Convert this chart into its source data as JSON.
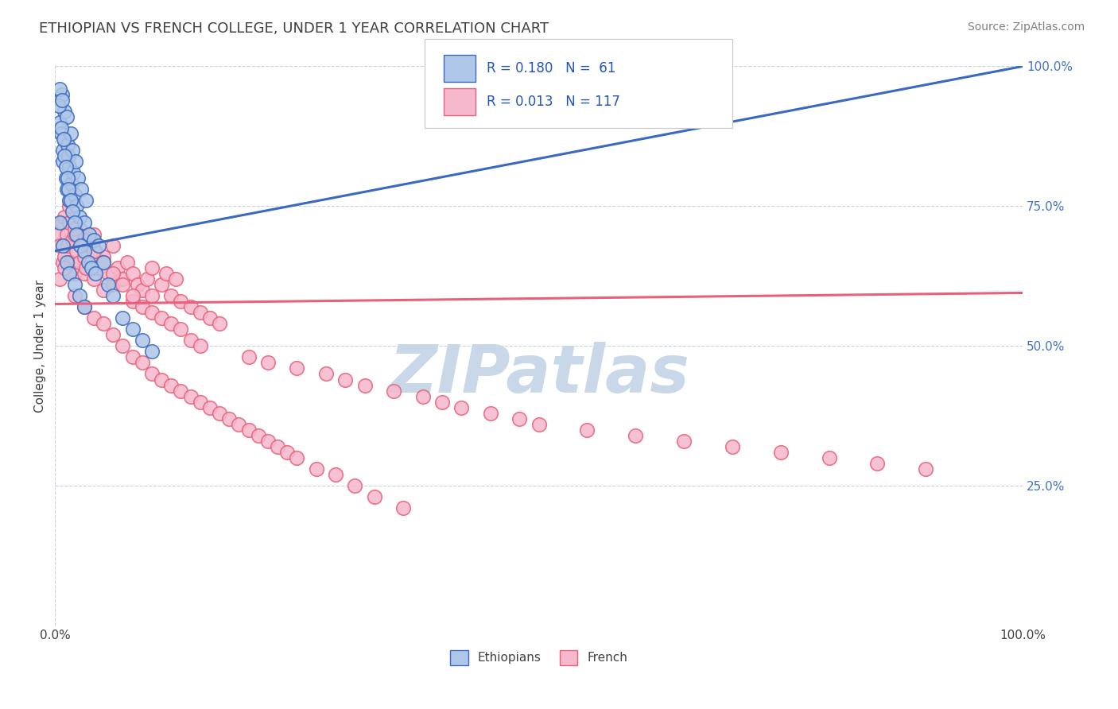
{
  "title": "ETHIOPIAN VS FRENCH COLLEGE, UNDER 1 YEAR CORRELATION CHART",
  "source_text": "Source: ZipAtlas.com",
  "ylabel": "College, Under 1 year",
  "xlim": [
    0.0,
    100.0
  ],
  "ylim": [
    0.0,
    100.0
  ],
  "r_ethiopian": 0.18,
  "n_ethiopian": 61,
  "r_french": 0.013,
  "n_french": 117,
  "blue_color": "#aec6e8",
  "pink_color": "#f5b8cc",
  "blue_line_color": "#3a6abf",
  "pink_line_color": "#e8607a",
  "title_color": "#404040",
  "legend_text_color": "#2255bb",
  "right_axis_color": "#4472c4",
  "watermark_color": "#c8d8e8",
  "grid_color": "#c8d0dc",
  "eth_trend_x0": 0.0,
  "eth_trend_y0": 67.0,
  "eth_trend_x1": 100.0,
  "eth_trend_y1": 100.0,
  "fr_trend_x0": 0.0,
  "fr_trend_y0": 57.5,
  "fr_trend_x1": 100.0,
  "fr_trend_y1": 59.5,
  "ethiopian_scatter_x": [
    0.5,
    0.6,
    0.7,
    0.8,
    0.8,
    1.0,
    1.0,
    1.1,
    1.2,
    1.2,
    1.3,
    1.4,
    1.5,
    1.5,
    1.6,
    1.7,
    1.8,
    1.9,
    2.0,
    2.1,
    2.2,
    2.4,
    2.5,
    2.7,
    3.0,
    3.2,
    3.5,
    4.0,
    4.5,
    5.0,
    0.4,
    0.5,
    0.6,
    0.7,
    0.9,
    1.0,
    1.1,
    1.3,
    1.4,
    1.6,
    1.8,
    2.0,
    2.2,
    2.6,
    3.0,
    3.4,
    3.8,
    4.2,
    5.5,
    6.0,
    0.5,
    0.8,
    1.2,
    1.5,
    2.0,
    2.5,
    3.0,
    7.0,
    8.0,
    9.0,
    10.0
  ],
  "ethiopian_scatter_y": [
    90,
    88,
    95,
    85,
    83,
    92,
    87,
    80,
    91,
    78,
    86,
    84,
    82,
    76,
    88,
    79,
    85,
    81,
    77,
    83,
    75,
    80,
    73,
    78,
    72,
    76,
    70,
    69,
    68,
    65,
    93,
    96,
    89,
    94,
    87,
    84,
    82,
    80,
    78,
    76,
    74,
    72,
    70,
    68,
    67,
    65,
    64,
    63,
    61,
    59,
    72,
    68,
    65,
    63,
    61,
    59,
    57,
    55,
    53,
    51,
    49
  ],
  "french_scatter_x": [
    0.3,
    0.5,
    0.7,
    0.8,
    1.0,
    1.0,
    1.2,
    1.3,
    1.5,
    1.6,
    1.8,
    2.0,
    2.0,
    2.2,
    2.5,
    2.5,
    2.8,
    3.0,
    3.0,
    3.2,
    3.5,
    3.8,
    4.0,
    4.0,
    4.2,
    4.5,
    5.0,
    5.0,
    5.5,
    6.0,
    6.0,
    6.5,
    7.0,
    7.5,
    8.0,
    8.0,
    8.5,
    9.0,
    9.5,
    10.0,
    10.0,
    11.0,
    11.5,
    12.0,
    12.5,
    13.0,
    14.0,
    15.0,
    16.0,
    17.0,
    1.5,
    2.0,
    3.0,
    4.0,
    5.0,
    6.0,
    7.0,
    8.0,
    9.0,
    10.0,
    11.0,
    12.0,
    13.0,
    14.0,
    15.0,
    20.0,
    22.0,
    25.0,
    28.0,
    30.0,
    32.0,
    35.0,
    38.0,
    40.0,
    42.0,
    45.0,
    48.0,
    50.0,
    55.0,
    60.0,
    65.0,
    70.0,
    75.0,
    80.0,
    85.0,
    90.0,
    0.5,
    1.0,
    2.0,
    3.0,
    4.0,
    5.0,
    6.0,
    7.0,
    8.0,
    9.0,
    10.0,
    11.0,
    12.0,
    13.0,
    14.0,
    15.0,
    16.0,
    17.0,
    18.0,
    19.0,
    20.0,
    21.0,
    22.0,
    23.0,
    24.0,
    25.0,
    27.0,
    29.0,
    31.0,
    33.0,
    36.0
  ],
  "french_scatter_y": [
    70,
    68,
    72,
    65,
    73,
    66,
    70,
    68,
    72,
    65,
    69,
    70,
    63,
    67,
    71,
    65,
    68,
    66,
    63,
    64,
    68,
    65,
    70,
    62,
    67,
    64,
    66,
    60,
    63,
    68,
    61,
    64,
    62,
    65,
    63,
    58,
    61,
    60,
    62,
    59,
    64,
    61,
    63,
    59,
    62,
    58,
    57,
    56,
    55,
    54,
    75,
    71,
    69,
    67,
    65,
    63,
    61,
    59,
    57,
    56,
    55,
    54,
    53,
    51,
    50,
    48,
    47,
    46,
    45,
    44,
    43,
    42,
    41,
    40,
    39,
    38,
    37,
    36,
    35,
    34,
    33,
    32,
    31,
    30,
    29,
    28,
    62,
    64,
    59,
    57,
    55,
    54,
    52,
    50,
    48,
    47,
    45,
    44,
    43,
    42,
    41,
    40,
    39,
    38,
    37,
    36,
    35,
    34,
    33,
    32,
    31,
    30,
    28,
    27,
    25,
    23,
    21
  ]
}
